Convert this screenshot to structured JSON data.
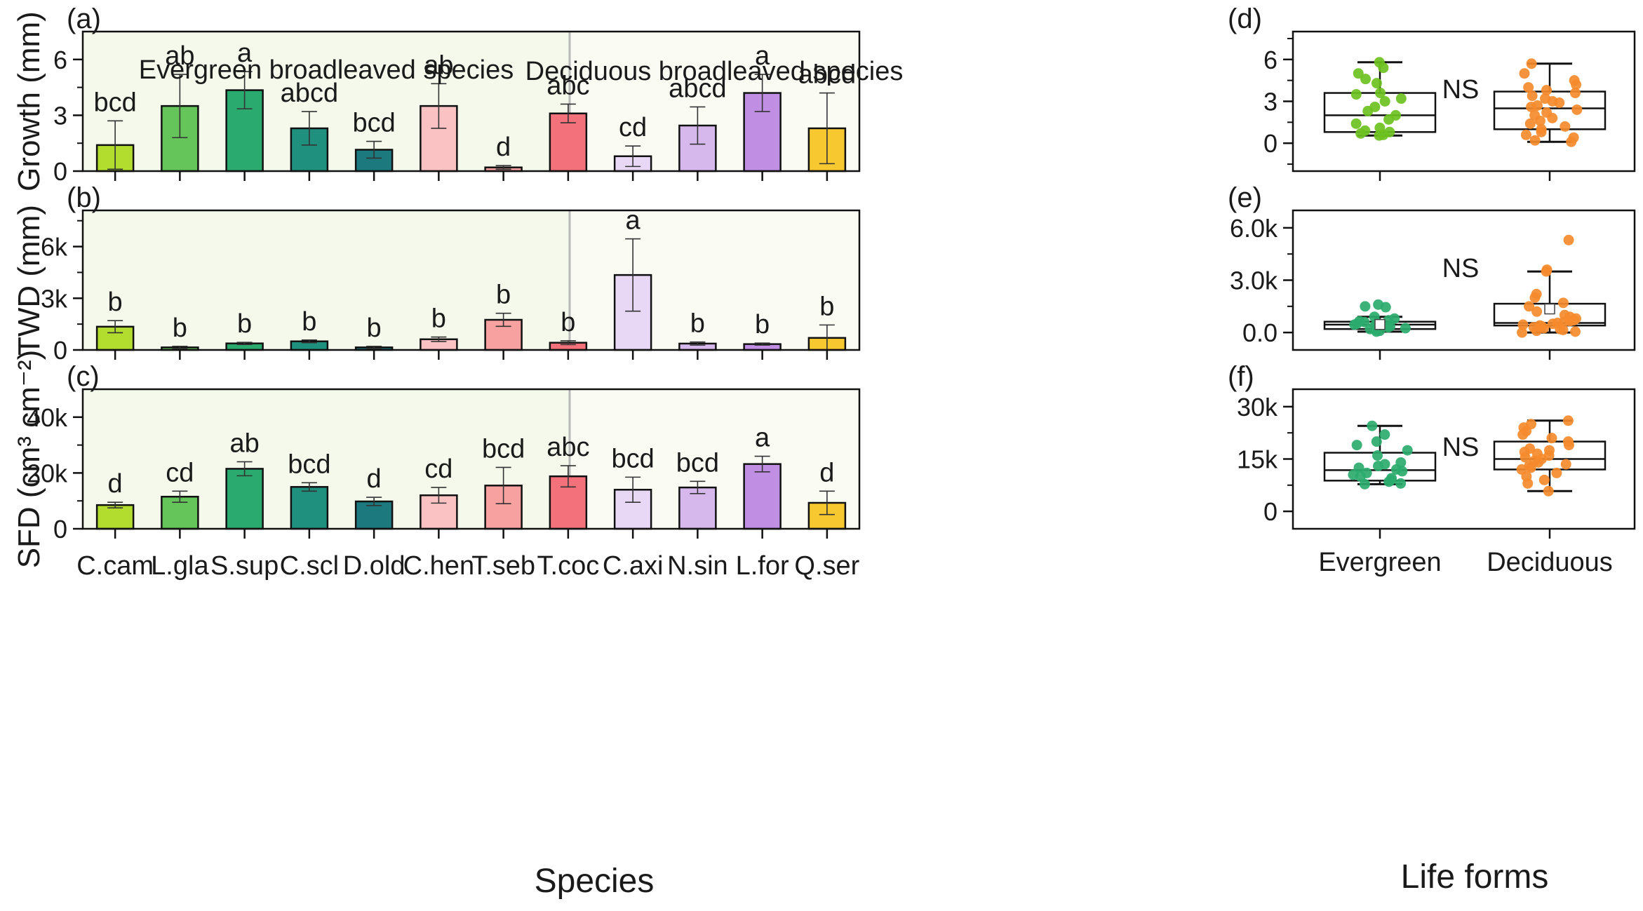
{
  "figure": {
    "species_xlabel": "Species",
    "lifeform_xlabel": "Life forms",
    "group_labels": {
      "evergreen": "Evergreen broadleaved species",
      "deciduous": "Deciduous broadleaved species"
    },
    "colors": {
      "evergreen_bg": "#f4f9ec",
      "deciduous_bg": "#fafcf4",
      "divider": "#b8b8b8",
      "evergreen_points": [
        "#6cc11f",
        "#2bab6e"
      ],
      "deciduous_points": "#f58a2c"
    }
  },
  "chart_data": [
    {
      "type": "bar",
      "panel": "(a)",
      "ylabel": "Growth (mm)",
      "ylim": [
        0,
        7.5
      ],
      "yticks": [
        0,
        3,
        6
      ],
      "yticklabels": [
        "0",
        "3",
        "6"
      ],
      "categories": [
        "C.cam",
        "L.gla",
        "S.sup",
        "C.scl",
        "D.old",
        "C.hen",
        "T.seb",
        "T.coc",
        "C.axi",
        "N.sin",
        "L.for",
        "Q.ser"
      ],
      "values": [
        1.4,
        3.5,
        4.35,
        2.3,
        1.15,
        3.5,
        0.2,
        3.1,
        0.8,
        2.45,
        4.2,
        2.3
      ],
      "errors": [
        1.3,
        1.7,
        1.0,
        0.9,
        0.45,
        1.2,
        0.1,
        0.5,
        0.55,
        1.0,
        1.0,
        1.9
      ],
      "letters": [
        "bcd",
        "ab",
        "a",
        "abcd",
        "bcd",
        "ab",
        "d",
        "abc",
        "cd",
        "abcd",
        "a",
        "abcd"
      ],
      "colors": [
        "#b2dc2e",
        "#66c55a",
        "#2aaa6f",
        "#1f8f7e",
        "#1c7a7e",
        "#fac2c2",
        "#f7a1a1",
        "#f2717a",
        "#e8d8f6",
        "#d6b8ec",
        "#c08ee3",
        "#f8c830"
      ]
    },
    {
      "type": "bar",
      "panel": "(b)",
      "ylabel": "TWD (mm)",
      "ylim": [
        0,
        8100
      ],
      "yticks": [
        0,
        3000,
        6000
      ],
      "yticklabels": [
        "0",
        "3k",
        "6k"
      ],
      "categories": [
        "C.cam",
        "L.gla",
        "S.sup",
        "C.scl",
        "D.old",
        "C.hen",
        "T.seb",
        "T.coc",
        "C.axi",
        "N.sin",
        "L.for",
        "Q.ser"
      ],
      "values": [
        1350,
        150,
        380,
        500,
        150,
        620,
        1750,
        420,
        4350,
        370,
        340,
        700
      ],
      "errors": [
        350,
        60,
        60,
        80,
        60,
        130,
        380,
        110,
        2100,
        90,
        60,
        750
      ],
      "letters": [
        "b",
        "b",
        "b",
        "b",
        "b",
        "b",
        "b",
        "b",
        "a",
        "b",
        "b",
        "b"
      ],
      "colors": [
        "#b2dc2e",
        "#66c55a",
        "#2aaa6f",
        "#1f8f7e",
        "#1c7a7e",
        "#fac2c2",
        "#f7a1a1",
        "#f2717a",
        "#e8d8f6",
        "#d6b8ec",
        "#c08ee3",
        "#f8c830"
      ]
    },
    {
      "type": "bar",
      "panel": "(c)",
      "ylabel": "SFD (cm³ cm⁻²)",
      "ylim": [
        0,
        50000
      ],
      "yticks": [
        0,
        20000,
        40000
      ],
      "yticklabels": [
        "0",
        "20k",
        "40k"
      ],
      "categories": [
        "C.cam",
        "L.gla",
        "S.sup",
        "C.scl",
        "D.old",
        "C.hen",
        "T.seb",
        "T.coc",
        "C.axi",
        "N.sin",
        "L.for",
        "Q.ser"
      ],
      "values": [
        8500,
        11500,
        21500,
        15000,
        9800,
        12000,
        15500,
        18800,
        14000,
        14800,
        23200,
        9300
      ],
      "errors": [
        1000,
        2000,
        2500,
        1500,
        1500,
        2800,
        6500,
        3800,
        4500,
        2200,
        2800,
        4200
      ],
      "letters": [
        "d",
        "cd",
        "ab",
        "bcd",
        "d",
        "cd",
        "bcd",
        "abc",
        "bcd",
        "bcd",
        "a",
        "d"
      ],
      "colors": [
        "#b2dc2e",
        "#66c55a",
        "#2aaa6f",
        "#1f8f7e",
        "#1c7a7e",
        "#fac2c2",
        "#f7a1a1",
        "#f2717a",
        "#e8d8f6",
        "#d6b8ec",
        "#c08ee3",
        "#f8c830"
      ]
    },
    {
      "type": "box",
      "panel": "(d)",
      "annotation": "NS",
      "ylim": [
        -2,
        8
      ],
      "yticks": [
        0,
        3,
        6
      ],
      "yticklabels": [
        "0",
        "3",
        "6"
      ],
      "categories": [
        "Evergreen",
        "Deciduous"
      ],
      "boxes": [
        {
          "name": "Evergreen",
          "min": 0.55,
          "q1": 0.8,
          "median": 2.0,
          "q3": 3.6,
          "max": 5.8,
          "point_color": "#6cc11f",
          "points": [
            5.8,
            5.4,
            5.0,
            4.6,
            4.3,
            3.6,
            3.5,
            3.2,
            3.0,
            2.6,
            2.3,
            2.0,
            1.7,
            1.4,
            1.1,
            0.9,
            0.8,
            0.7,
            0.6,
            0.55
          ]
        },
        {
          "name": "Deciduous",
          "min": 0.1,
          "q1": 1.0,
          "median": 2.5,
          "q3": 3.7,
          "max": 5.7,
          "point_color": "#f58a2c",
          "points": [
            5.7,
            5.0,
            4.5,
            4.2,
            4.0,
            3.8,
            3.6,
            3.4,
            3.2,
            3.0,
            2.9,
            2.7,
            2.6,
            2.4,
            2.2,
            2.0,
            1.8,
            1.6,
            1.4,
            1.2,
            1.0,
            0.8,
            0.6,
            0.4,
            0.2,
            0.1
          ]
        }
      ]
    },
    {
      "type": "box",
      "panel": "(e)",
      "annotation": "NS",
      "ylim": [
        -1000,
        7000
      ],
      "yticks": [
        0,
        3000,
        6000
      ],
      "yticklabels": [
        "0.0",
        "3.0k",
        "6.0k"
      ],
      "categories": [
        "Evergreen",
        "Deciduous"
      ],
      "boxes": [
        {
          "name": "Evergreen",
          "min": 50,
          "q1": 200,
          "median": 450,
          "q3": 620,
          "max": 900,
          "mean": 460,
          "point_color": "#2bab6e",
          "points": [
            1600,
            1500,
            1450,
            900,
            800,
            700,
            650,
            600,
            550,
            500,
            450,
            400,
            350,
            300,
            250,
            200,
            150,
            100,
            50
          ]
        },
        {
          "name": "Deciduous",
          "min": 0,
          "q1": 400,
          "median": 550,
          "q3": 1650,
          "max": 3500,
          "mean": 1350,
          "point_color": "#f58a2c",
          "points": [
            5300,
            3600,
            3500,
            2200,
            2000,
            1700,
            1500,
            1200,
            1000,
            900,
            800,
            700,
            650,
            600,
            550,
            500,
            450,
            400,
            350,
            300,
            250,
            200,
            150,
            100,
            50,
            0
          ]
        }
      ]
    },
    {
      "type": "box",
      "panel": "(f)",
      "annotation": "NS",
      "ylim": [
        -5000,
        35000
      ],
      "yticks": [
        0,
        15000,
        30000
      ],
      "yticklabels": [
        "0",
        "15k",
        "30k"
      ],
      "categories": [
        "Evergreen",
        "Deciduous"
      ],
      "boxes": [
        {
          "name": "Evergreen",
          "min": 7800,
          "q1": 8800,
          "median": 11800,
          "q3": 16800,
          "max": 24500,
          "point_color": "#2bab6e",
          "points": [
            24500,
            22000,
            20000,
            19000,
            17500,
            16000,
            14000,
            13500,
            13000,
            12500,
            12000,
            11500,
            11000,
            10500,
            10000,
            9500,
            9000,
            8500,
            8000,
            7800
          ]
        },
        {
          "name": "Deciduous",
          "min": 5800,
          "q1": 12000,
          "median": 15000,
          "q3": 20000,
          "max": 26000,
          "point_color": "#f58a2c",
          "points": [
            26000,
            25000,
            24000,
            23000,
            22000,
            21000,
            20000,
            19000,
            18000,
            17500,
            17000,
            16500,
            16000,
            15500,
            15000,
            14500,
            14000,
            13500,
            13000,
            12500,
            12000,
            11000,
            10000,
            9000,
            8000,
            5800
          ]
        }
      ]
    }
  ]
}
